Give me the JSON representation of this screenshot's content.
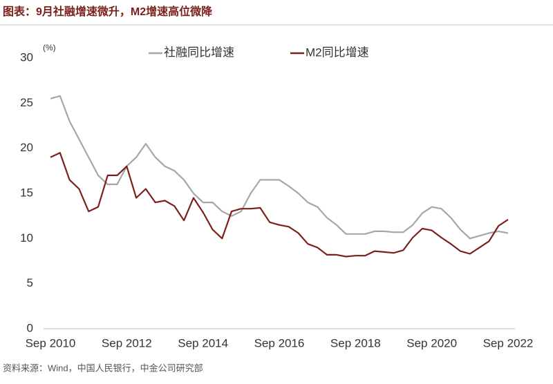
{
  "chart_data": {
    "type": "line",
    "title": "图表：9月社融增速微升，M2增速高位微降",
    "y_unit": "(%)",
    "source": "资料来源：Wind，中国人民银行，中金公司研究部",
    "categories": [
      "Sep 2010",
      null,
      null,
      null,
      null,
      null,
      null,
      null,
      "Sep 2012",
      null,
      null,
      null,
      null,
      null,
      null,
      null,
      "Sep 2014",
      null,
      null,
      null,
      null,
      null,
      null,
      null,
      "Sep 2016",
      null,
      null,
      null,
      null,
      null,
      null,
      null,
      "Sep 2018",
      null,
      null,
      null,
      null,
      null,
      null,
      null,
      "Sep 2020",
      null,
      null,
      null,
      null,
      null,
      null,
      null,
      "Sep 2022"
    ],
    "series": [
      {
        "name": "社融同比增速",
        "color": "#a6a6a6",
        "values": [
          25.5,
          25.8,
          23,
          21,
          19,
          17,
          16,
          16,
          18,
          19,
          20.5,
          19,
          18,
          17.5,
          16.5,
          15,
          14,
          14,
          13,
          12.5,
          13,
          15,
          16.5,
          16.5,
          16.5,
          15.8,
          15,
          14,
          13.5,
          12.3,
          11.5,
          10.5,
          10.5,
          10.5,
          10.8,
          10.8,
          10.7,
          10.7,
          11.5,
          12.8,
          13.5,
          13.3,
          12.3,
          11,
          10,
          10.3,
          10.6,
          10.8,
          10.6
        ]
      },
      {
        "name": "M2同比增速",
        "color": "#7b1f1a",
        "values": [
          19,
          19.5,
          16.5,
          15.5,
          13,
          13.5,
          17,
          17,
          18,
          14.5,
          15.5,
          14,
          14.2,
          13.6,
          12,
          14.5,
          12.9,
          11,
          10,
          13,
          13.3,
          13.3,
          13.4,
          11.8,
          11.5,
          11.3,
          10.6,
          9.4,
          9.0,
          8.2,
          8.2,
          8.0,
          8.1,
          8.1,
          8.6,
          8.5,
          8.4,
          8.7,
          10.1,
          11.1,
          10.9,
          10.1,
          9.4,
          8.6,
          8.3,
          9.0,
          9.7,
          11.4,
          12.1
        ]
      }
    ],
    "ylim": [
      0,
      30
    ],
    "yticks": [
      0,
      5,
      10,
      15,
      20,
      25,
      30
    ],
    "grid": false
  }
}
